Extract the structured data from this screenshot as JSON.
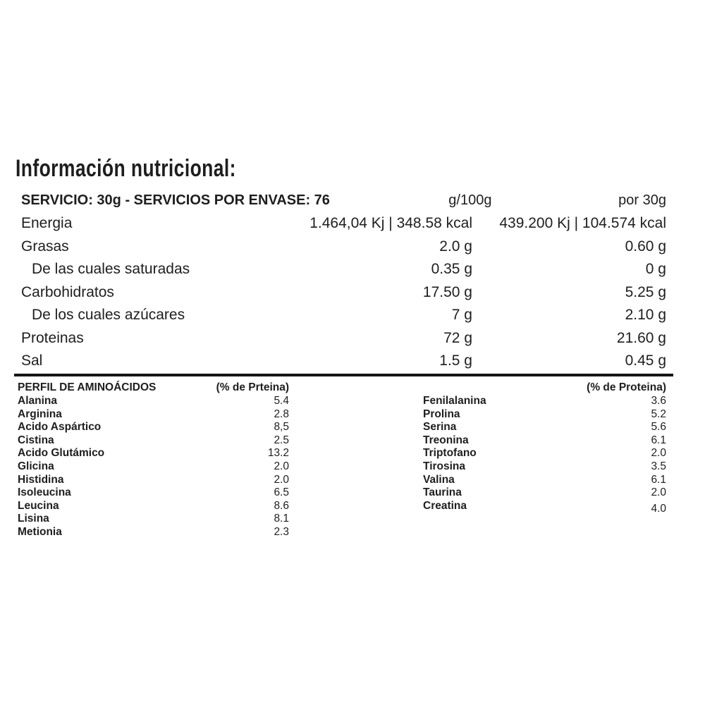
{
  "page": {
    "title": "Información nutricional:"
  },
  "colors": {
    "background": "#ffffff",
    "text": "#1e1e1e",
    "divider": "#151515"
  },
  "nutrition_table": {
    "header": {
      "serving_info": "SERVICIO: 30g - SERVICIOS POR ENVASE: 76",
      "per_100g": "g/100g",
      "per_serving": "por 30g"
    },
    "rows": [
      {
        "label": "Energia",
        "per_100g": "1.464,04 Kj | 348.58 kcal",
        "per_serving": "439.200 Kj | 104.574 kcal"
      },
      {
        "label": "Grasas",
        "per_100g": "2.0 g",
        "per_serving": "0.60 g"
      },
      {
        "label": "De las cuales saturadas",
        "per_100g": "0.35 g",
        "per_serving": "0 g"
      },
      {
        "label": "Carbohidratos",
        "per_100g": "17.50 g",
        "per_serving": "5.25 g"
      },
      {
        "label": "De los cuales azúcares",
        "per_100g": "7 g",
        "per_serving": "2.10 g"
      },
      {
        "label": "Proteinas",
        "per_100g": "72 g",
        "per_serving": "21.60 g"
      },
      {
        "label": "Sal",
        "per_100g": "1.5 g",
        "per_serving": "0.45 g"
      }
    ]
  },
  "amino_profile": {
    "left_column": {
      "title": "PERFIL DE AMINOÁCIDOS",
      "unit_header": "(% de Prteina)",
      "rows": [
        {
          "name": "Alanina",
          "value": "5.4"
        },
        {
          "name": "Arginina",
          "value": "2.8"
        },
        {
          "name": "Acido Aspártico",
          "value": "8,5"
        },
        {
          "name": "Cistina",
          "value": "2.5"
        },
        {
          "name": "Acido Glutámico",
          "value": "13.2"
        },
        {
          "name": "Glicina",
          "value": "2.0"
        },
        {
          "name": "Histidina",
          "value": "2.0"
        },
        {
          "name": "Isoleucina",
          "value": "6.5"
        },
        {
          "name": "Leucina",
          "value": "8.6"
        },
        {
          "name": "Lisina",
          "value": "8.1"
        },
        {
          "name": "Metionia",
          "value": "2.3"
        }
      ]
    },
    "right_column": {
      "unit_header": "(% de Proteina)",
      "rows": [
        {
          "name": "Fenilalanina",
          "value": "3.6"
        },
        {
          "name": "Prolina",
          "value": "5.2"
        },
        {
          "name": "Serina",
          "value": "5.6"
        },
        {
          "name": "Treonina",
          "value": "6.1"
        },
        {
          "name": "Triptofano",
          "value": "2.0"
        },
        {
          "name": "Tirosina",
          "value": "3.5"
        },
        {
          "name": "Valina",
          "value": "6.1"
        },
        {
          "name": "Taurina",
          "value": "2.0"
        },
        {
          "name": "Creatina",
          "value": "4.0"
        }
      ]
    }
  }
}
